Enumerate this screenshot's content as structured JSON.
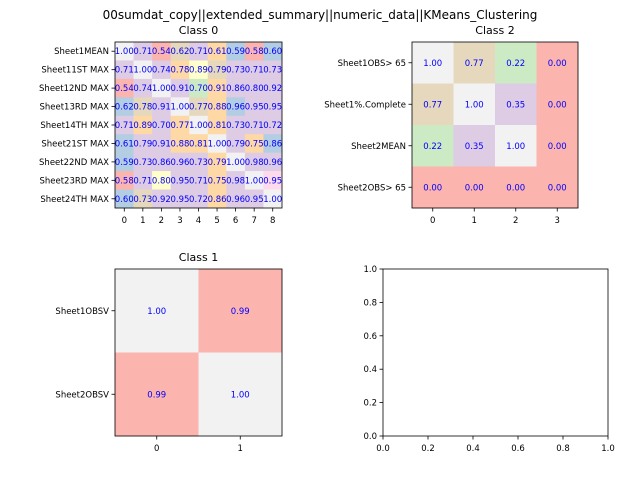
{
  "figure": {
    "suptitle": "00sumdat_copy||extended_summary||numeric_data||KMeans_Clustering"
  },
  "colors": {
    "value_text": "#0000ff",
    "palette": [
      "#f2f2f2",
      "#ccebc5",
      "#decbe4",
      "#e5d8bd",
      "#fed9a6",
      "#ffffcc",
      "#b3cde3",
      "#fddaec",
      "#fbb4ae"
    ]
  },
  "chart_data": [
    {
      "type": "heatmap",
      "title": "Class 0",
      "row_labels": [
        "Sheet1MEAN",
        "Sheet11ST MAX",
        "Sheet12ND MAX",
        "Sheet13RD MAX",
        "Sheet14TH MAX",
        "Sheet21ST MAX",
        "Sheet22ND MAX",
        "Sheet23RD MAX",
        "Sheet24TH MAX"
      ],
      "col_labels": [
        "0",
        "1",
        "2",
        "3",
        "4",
        "5",
        "6",
        "7",
        "8"
      ],
      "values": [
        [
          "1.00",
          "0.71",
          "0.54",
          "0.62",
          "0.71",
          "0.61",
          "0.59",
          "0.58",
          "0.60"
        ],
        [
          "0.71",
          "1.00",
          "0.74",
          "0.78",
          "0.89",
          "0.79",
          "0.73",
          "0.71",
          "0.73"
        ],
        [
          "0.54",
          "0.74",
          "1.00",
          "0.91",
          "0.70",
          "0.91",
          "0.86",
          "0.80",
          "0.92"
        ],
        [
          "0.62",
          "0.78",
          "0.91",
          "1.00",
          "0.77",
          "0.88",
          "0.96",
          "0.95",
          "0.95"
        ],
        [
          "0.71",
          "0.89",
          "0.70",
          "0.77",
          "1.00",
          "0.81",
          "0.73",
          "0.71",
          "0.72"
        ],
        [
          "0.61",
          "0.79",
          "0.91",
          "0.88",
          "0.81",
          "1.00",
          "0.79",
          "0.75",
          "0.86"
        ],
        [
          "0.59",
          "0.73",
          "0.86",
          "0.96",
          "0.73",
          "0.79",
          "1.00",
          "0.98",
          "0.96"
        ],
        [
          "0.58",
          "0.71",
          "0.80",
          "0.95",
          "0.71",
          "0.75",
          "0.98",
          "1.00",
          "0.95"
        ],
        [
          "0.60",
          "0.73",
          "0.92",
          "0.95",
          "0.72",
          "0.86",
          "0.96",
          "0.95",
          "1.00"
        ]
      ],
      "color_index": [
        [
          0,
          2,
          8,
          3,
          2,
          4,
          6,
          8,
          6
        ],
        [
          2,
          0,
          2,
          4,
          5,
          3,
          2,
          2,
          2
        ],
        [
          8,
          2,
          0,
          2,
          1,
          4,
          2,
          2,
          2
        ],
        [
          6,
          3,
          2,
          0,
          3,
          4,
          6,
          2,
          2
        ],
        [
          2,
          4,
          2,
          4,
          0,
          4,
          2,
          2,
          2
        ],
        [
          6,
          2,
          2,
          4,
          4,
          0,
          2,
          4,
          6
        ],
        [
          6,
          2,
          2,
          2,
          2,
          4,
          0,
          2,
          2
        ],
        [
          8,
          2,
          5,
          2,
          2,
          4,
          2,
          0,
          7
        ],
        [
          6,
          3,
          2,
          2,
          2,
          4,
          2,
          2,
          0
        ]
      ]
    },
    {
      "type": "heatmap",
      "title": "Class 2",
      "row_labels": [
        "Sheet1OBS> 65",
        "Sheet1%.Complete",
        "Sheet2MEAN",
        "Sheet2OBS> 65"
      ],
      "col_labels": [
        "0",
        "1",
        "2",
        "3"
      ],
      "values": [
        [
          "1.00",
          "0.77",
          "0.22",
          "0.00"
        ],
        [
          "0.77",
          "1.00",
          "0.35",
          "0.00"
        ],
        [
          "0.22",
          "0.35",
          "1.00",
          "0.00"
        ],
        [
          "0.00",
          "0.00",
          "0.00",
          "0.00"
        ]
      ],
      "color_index": [
        [
          0,
          3,
          1,
          8
        ],
        [
          3,
          0,
          2,
          8
        ],
        [
          1,
          2,
          0,
          8
        ],
        [
          8,
          8,
          8,
          8
        ]
      ]
    },
    {
      "type": "heatmap",
      "title": "Class 1",
      "row_labels": [
        "Sheet1OBSV",
        "Sheet2OBSV"
      ],
      "col_labels": [
        "0",
        "1"
      ],
      "values": [
        [
          "1.00",
          "0.99"
        ],
        [
          "0.99",
          "1.00"
        ]
      ],
      "color_index": [
        [
          0,
          8
        ],
        [
          8,
          0
        ]
      ]
    },
    {
      "type": "line",
      "title": "",
      "xlim": [
        0,
        1
      ],
      "ylim": [
        0,
        1
      ],
      "x_ticks": [
        "0.0",
        "0.2",
        "0.4",
        "0.6",
        "0.8",
        "1.0"
      ],
      "y_ticks": [
        "0.0",
        "0.2",
        "0.4",
        "0.6",
        "0.8",
        "1.0"
      ],
      "series": []
    }
  ]
}
